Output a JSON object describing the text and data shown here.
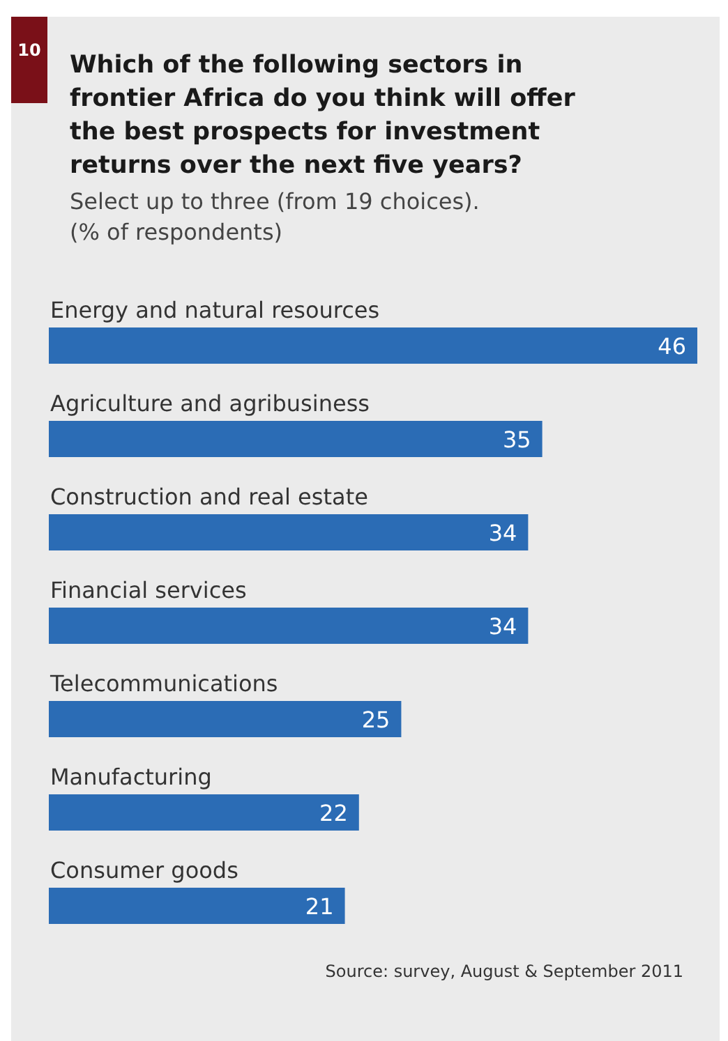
{
  "chart_data": {
    "type": "bar",
    "orientation": "horizontal",
    "title": "Which of the following sectors in frontier Africa do you think will offer the best prospects for investment returns over the next five years?",
    "subtitle": "Select up to three (from 19 choices). (% of respondents)",
    "categories": [
      "Energy and natural resources",
      "Agriculture and agribusiness",
      "Construction and real estate",
      "Financial services",
      "Telecommunications",
      "Manufacturing",
      "Consumer goods"
    ],
    "values": [
      46,
      35,
      34,
      34,
      25,
      22,
      21
    ],
    "color": "#2b6cb5",
    "data_labels": true,
    "annotations": [
      "10",
      "Source: survey, August & September 2011"
    ]
  }
}
